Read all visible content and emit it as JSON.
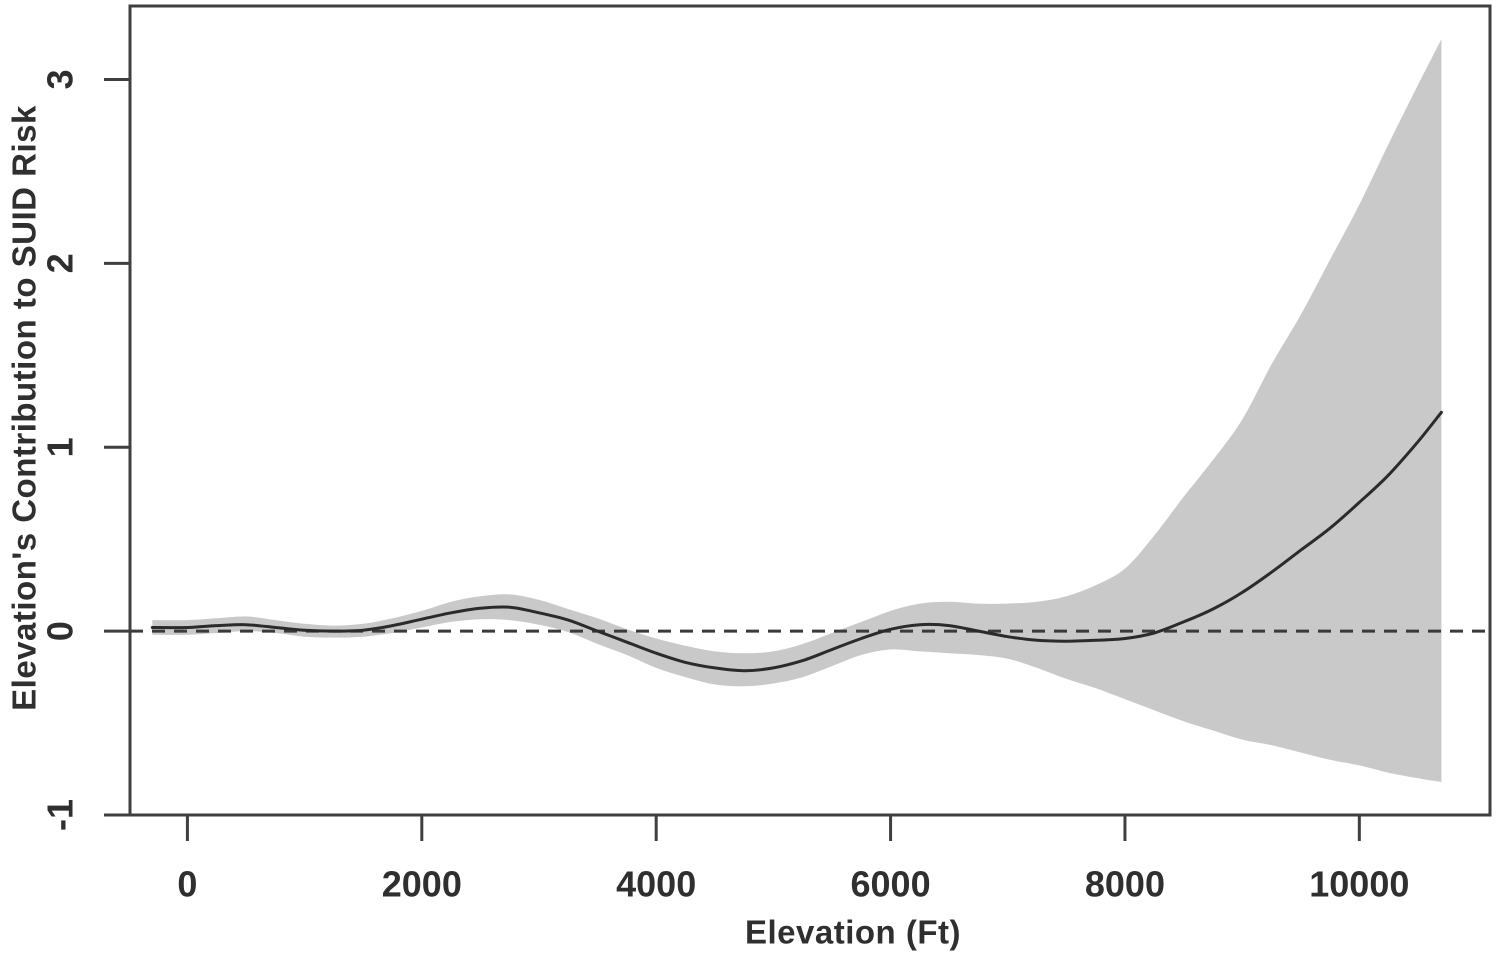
{
  "figure": {
    "title": "",
    "type_note": "smooth curve with shaded confidence band and dashed zero reference line"
  },
  "chart_data": {
    "type": "line",
    "title": "",
    "xlabel": "Elevation (Ft)",
    "ylabel": "Elevation's Contribution to SUID Risk",
    "x_ticks": [
      0,
      2000,
      4000,
      6000,
      8000,
      10000
    ],
    "x_tick_labels": [
      "0",
      "2000",
      "4000",
      "6000",
      "8000",
      "10000"
    ],
    "y_ticks": [
      -1,
      0,
      1,
      2,
      3
    ],
    "y_tick_labels": [
      "-1",
      "0",
      "1",
      "2",
      "3"
    ],
    "xlim": [
      -490,
      11115
    ],
    "ylim": [
      -1,
      3.4
    ],
    "grid": false,
    "legend": "none",
    "reference_line": {
      "y": 0,
      "style": "dashed"
    },
    "band_meaning": "confidence interval around smooth fit",
    "x": [
      -300,
      0,
      250,
      500,
      750,
      1000,
      1250,
      1500,
      1750,
      2000,
      2250,
      2500,
      2750,
      3000,
      3250,
      3500,
      3750,
      4000,
      4250,
      4500,
      4750,
      5000,
      5250,
      5500,
      5750,
      6000,
      6250,
      6500,
      6750,
      7000,
      7250,
      7500,
      7750,
      8000,
      8250,
      8500,
      8750,
      9000,
      9250,
      9500,
      9750,
      10000,
      10250,
      10500,
      10700
    ],
    "series": [
      {
        "name": "smooth_fit",
        "style": "solid",
        "values": [
          0.02,
          0.02,
          0.03,
          0.035,
          0.02,
          0.005,
          0,
          0.005,
          0.03,
          0.065,
          0.1,
          0.125,
          0.13,
          0.1,
          0.06,
          0,
          -0.06,
          -0.12,
          -0.17,
          -0.2,
          -0.215,
          -0.2,
          -0.16,
          -0.1,
          -0.04,
          0.01,
          0.035,
          0.03,
          0,
          -0.03,
          -0.05,
          -0.055,
          -0.05,
          -0.04,
          -0.01,
          0.05,
          0.12,
          0.21,
          0.32,
          0.44,
          0.56,
          0.7,
          0.85,
          1.03,
          1.19
        ]
      },
      {
        "name": "ci_upper",
        "style": "band_edge",
        "values": [
          0.06,
          0.06,
          0.07,
          0.08,
          0.06,
          0.04,
          0.03,
          0.04,
          0.07,
          0.11,
          0.16,
          0.19,
          0.2,
          0.17,
          0.12,
          0.07,
          0.01,
          -0.04,
          -0.08,
          -0.11,
          -0.12,
          -0.11,
          -0.07,
          -0.01,
          0.05,
          0.11,
          0.15,
          0.16,
          0.15,
          0.15,
          0.16,
          0.19,
          0.25,
          0.34,
          0.52,
          0.73,
          0.93,
          1.15,
          1.45,
          1.72,
          2.02,
          2.32,
          2.65,
          2.97,
          3.22
        ]
      },
      {
        "name": "ci_lower",
        "style": "band_edge",
        "values": [
          -0.02,
          -0.02,
          -0.01,
          0,
          -0.01,
          -0.03,
          -0.035,
          -0.03,
          -0.01,
          0.02,
          0.05,
          0.065,
          0.06,
          0.035,
          -0.005,
          -0.07,
          -0.13,
          -0.2,
          -0.25,
          -0.29,
          -0.3,
          -0.285,
          -0.25,
          -0.19,
          -0.13,
          -0.1,
          -0.11,
          -0.12,
          -0.13,
          -0.15,
          -0.2,
          -0.26,
          -0.31,
          -0.37,
          -0.43,
          -0.49,
          -0.54,
          -0.59,
          -0.62,
          -0.66,
          -0.7,
          -0.73,
          -0.77,
          -0.8,
          -0.82
        ]
      }
    ],
    "colors": {
      "background": "#ffffff",
      "band": "#c9c9c9",
      "line": "#2b2b2b",
      "reference": "#3a3a3a",
      "axis": "#3f3f3f",
      "text": "#2f2f2f"
    }
  }
}
